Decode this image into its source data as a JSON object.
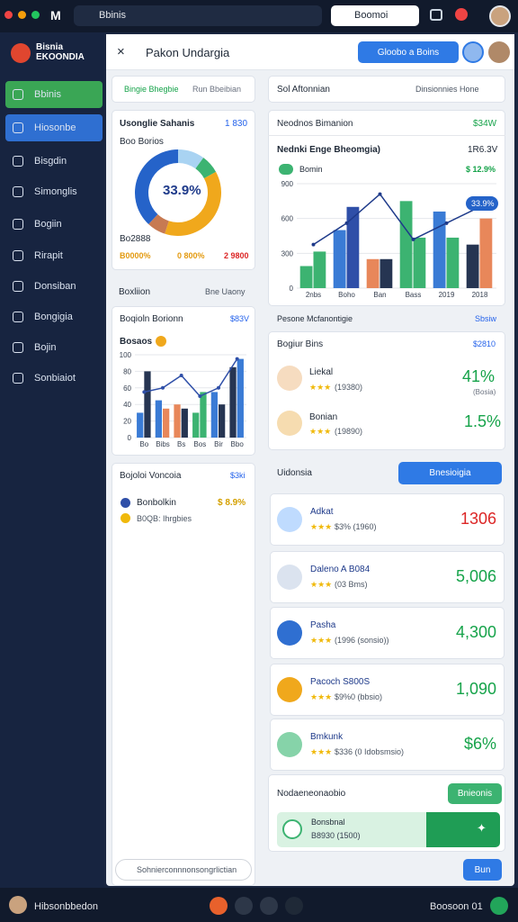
{
  "topbar": {
    "search": "Bbinis",
    "button": "Boomoi"
  },
  "sidebar": {
    "brand": "Bisnia EKOONDIA",
    "nav": [
      "Bbinis",
      "Hiosonbe",
      "Bisgdin",
      "Simonglis",
      "Bogiin",
      "Rirapit",
      "Donsiban",
      "Bongigia",
      "Bojin",
      "Sonbiaiot"
    ]
  },
  "header": {
    "title": "Pakon Undargia",
    "button": "Gloobo a Boins"
  },
  "left": {
    "tab_active": "Bingie Bhegbie",
    "tab_other": "Run Bbeibian",
    "donut_card": {
      "title": "Usonglie Sahanis",
      "value": "1 830",
      "subtitle": "Boo Borios",
      "center": "33.9%",
      "note": "Bo2888",
      "legend": [
        "B0000%",
        "0 800%",
        "2 9800"
      ]
    },
    "filter": {
      "label": "Boxliion",
      "select": "Bne Uaony"
    },
    "bar_card": {
      "title": "Boqioln Borionn",
      "value": "$83V",
      "legend": "Bosaos"
    },
    "list_card": {
      "title": "Bojoloi Voncoia",
      "value": "$3ki",
      "item": "Bonbolkin",
      "item_value": "$ 8.9%",
      "item_sub": "B0QB: Ihrgbies",
      "input": "Sohnierconnnonsongrlictian"
    }
  },
  "right": {
    "filter": {
      "label": "Sol Aftonnian",
      "select": "Dinsionnies Hone"
    },
    "chart_card": {
      "title": "Neodnos Bimanion",
      "value": "$34W",
      "subtitle": "Nednki Enge Bheomgia)",
      "subvalue": "1R6.3V",
      "legend": "Bomin",
      "legend_value": "$ 12.9%",
      "badge": "33.9%"
    },
    "section": {
      "title": "Pesone Mcfanontigie",
      "value": "Sbsiw"
    },
    "rank_card": {
      "title": "Bogiur Bins",
      "value": "$2810",
      "items": [
        {
          "name": "Liekal",
          "count": "(19380)",
          "value": "41%",
          "note": "(Bosia)"
        },
        {
          "name": "Bonian",
          "count": "(19890)",
          "value": "1.5%"
        }
      ]
    },
    "list_header": {
      "title": "Uidonsia",
      "button": "Bnesioigia"
    },
    "items": [
      {
        "name": "Adkat",
        "sub": "$3% (1960)",
        "value": "1306"
      },
      {
        "name": "Daleno A B084",
        "sub": "(03 Bms)",
        "value": "5,006"
      },
      {
        "name": "Pasha",
        "sub": "(1996 (sonsio))",
        "value": "4,300"
      },
      {
        "name": "Pacoch S800S",
        "sub": "$9%0 (bbsio)",
        "value": "1,090"
      },
      {
        "name": "Bmkunk",
        "sub": "$336 (0 Idobsmsio)",
        "value": "$6%"
      }
    ],
    "promo_card": {
      "title": "Nodaeneonaobio",
      "button": "Bnieonis",
      "name": "Bonsbnal",
      "sub": "B8930 (1500)"
    },
    "button": "Bun"
  },
  "bottombar": {
    "user": "Hibsonbbedon",
    "status": "Boosoon 01"
  },
  "chart_data": [
    {
      "type": "donut",
      "values": [
        10,
        7,
        38,
        7,
        38
      ],
      "colors": [
        "#a9d3f2",
        "#3cb371",
        "#f0a81c",
        "#c77a52",
        "#2563c9"
      ]
    },
    {
      "type": "bar",
      "categories": [
        "Bo",
        "Bibs",
        "Bs",
        "Bos",
        "Bir",
        "Bbo"
      ],
      "ylim": [
        0,
        100
      ],
      "yticks": [
        0,
        20,
        40,
        60,
        80,
        100
      ],
      "grid": true,
      "series": [
        {
          "values": [
            30,
            45,
            40,
            30,
            55,
            85
          ],
          "colors": [
            "#3a7bd5",
            "#3a7bd5",
            "#e8875a",
            "#3cb371",
            "#3a7bd5",
            "#263552"
          ]
        },
        {
          "values": [
            80,
            35,
            35,
            55,
            40,
            95
          ],
          "colors": [
            "#263552",
            "#e8875a",
            "#263552",
            "#3cb371",
            "#263552",
            "#3a7bd5"
          ]
        },
        {
          "type": "line",
          "color": "#2f4fa8",
          "values": [
            55,
            60,
            75,
            50,
            60,
            95
          ]
        }
      ]
    },
    {
      "type": "bar",
      "categories": [
        "2nbs",
        "Boho",
        "Ban",
        "Bass",
        "2019",
        "2018"
      ],
      "ylim": [
        0,
        900
      ],
      "yticks": [
        0,
        300,
        600,
        900
      ],
      "grid": true,
      "series": [
        {
          "values": [
            190,
            500,
            250,
            750,
            660,
            375
          ],
          "colors": [
            "#3cb371",
            "#3a7bd5",
            "#e8875a",
            "#3cb371",
            "#3a7bd5",
            "#263552"
          ]
        },
        {
          "values": [
            315,
            700,
            250,
            435,
            435,
            600
          ],
          "colors": [
            "#3cb371",
            "#2f4fa8",
            "#263552",
            "#3cb371",
            "#3cb371",
            "#e8875a"
          ]
        },
        {
          "type": "line",
          "color": "#1e3a8a",
          "values": [
            375,
            560,
            810,
            420,
            560,
            700
          ]
        }
      ]
    }
  ]
}
